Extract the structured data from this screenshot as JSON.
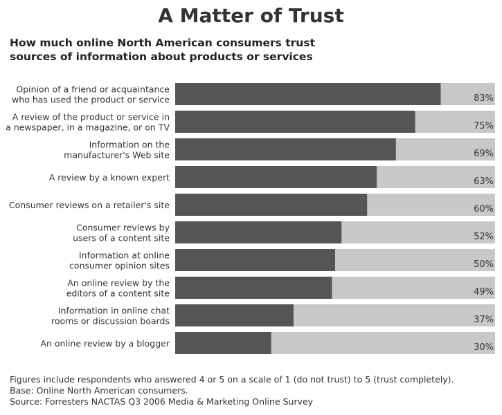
{
  "chart_data": {
    "type": "bar",
    "orientation": "horizontal",
    "title": "A Matter of Trust",
    "subtitle": "How much online North American consumers trust sources of information about products or services",
    "categories": [
      [
        "Opinion of a friend or acquaintance",
        "who has used the product or service"
      ],
      [
        "A review of the product or service in",
        "a newspaper, in a magazine, or on TV"
      ],
      [
        "Information on the",
        "manufacturer's Web site"
      ],
      [
        "A review by a known expert"
      ],
      [
        "Consumer reviews on a retailer's site"
      ],
      [
        "Consumer reviews by",
        "users of a content site"
      ],
      [
        "Information at online",
        "consumer opinion sites"
      ],
      [
        "An online review by the",
        "editors of a content site"
      ],
      [
        "Information in online chat",
        "rooms or discussion boards"
      ],
      [
        "An online review by a blogger"
      ]
    ],
    "values": [
      83,
      75,
      69,
      63,
      60,
      52,
      50,
      49,
      37,
      30
    ],
    "value_labels": [
      "83%",
      "75%",
      "69%",
      "63%",
      "60%",
      "52%",
      "50%",
      "49%",
      "37%",
      "30%"
    ],
    "xlim": [
      0,
      100
    ],
    "unit": "%",
    "grid": false,
    "colors": {
      "bar": "#555555",
      "track": "#c8c8c8",
      "label_text": "#333333"
    }
  },
  "footnotes": [
    "Figures include respondents who answered 4 or 5 on a scale of 1 (do not trust) to 5 (trust completely).",
    "Base: Online North American consumers.",
    "Source: Forresters NACTAS Q3 2006 Media & Marketing Online Survey"
  ]
}
